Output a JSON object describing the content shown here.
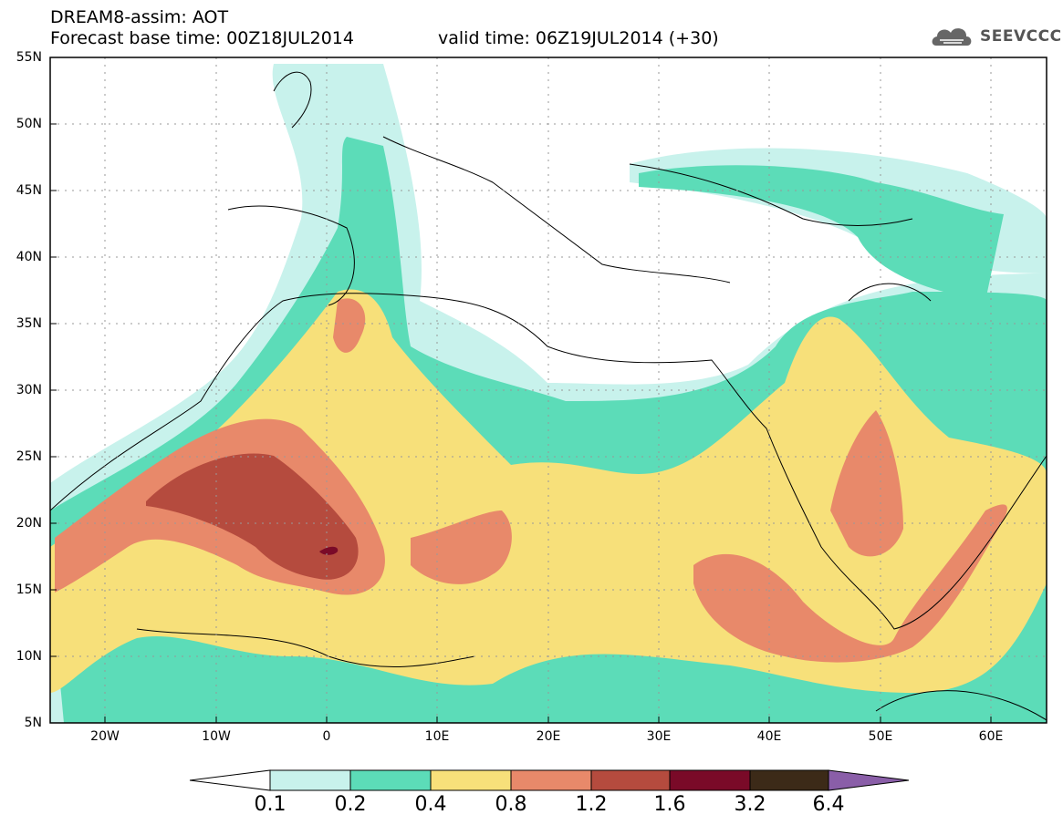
{
  "header": {
    "model_title": "DREAM8-assim: AOT",
    "base_time": "Forecast base time: 00Z18JUL2014",
    "valid_time": "valid time: 06Z19JUL2014 (+30)",
    "logo_text": "SEEVCCC"
  },
  "axes": {
    "lat_labels": [
      "55N",
      "50N",
      "45N",
      "40N",
      "35N",
      "30N",
      "25N",
      "20N",
      "15N",
      "10N",
      "5N"
    ],
    "lon_labels": [
      "20W",
      "10W",
      "0",
      "10E",
      "20E",
      "30E",
      "40E",
      "50E",
      "60E"
    ]
  },
  "colorbar": {
    "levels": [
      "0.1",
      "0.2",
      "0.4",
      "0.8",
      "1.2",
      "1.6",
      "3.2",
      "6.4"
    ],
    "colors": [
      "#ffffff",
      "#c8f2ec",
      "#5cdcb8",
      "#f7e07a",
      "#e8896a",
      "#b54b3e",
      "#7a0a28",
      "#3c2a18",
      "#8a5ea8"
    ]
  }
}
